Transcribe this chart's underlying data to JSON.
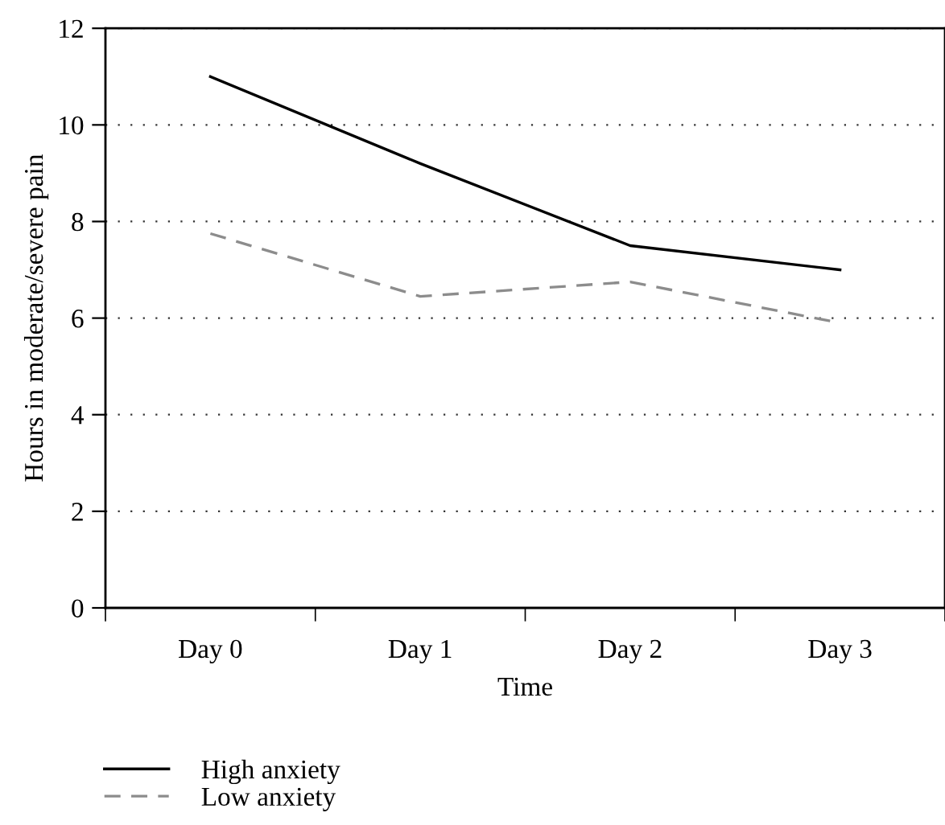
{
  "chart_data": {
    "type": "line",
    "xlabel": "Time",
    "ylabel": "Hours in moderate/severe pain",
    "categories": [
      "Day 0",
      "Day 1",
      "Day 2",
      "Day 3"
    ],
    "series": [
      {
        "name": "High anxiety",
        "color": "#000000",
        "line_style": "solid",
        "values": [
          11,
          9.2,
          7.5,
          7.0
        ]
      },
      {
        "name": "Low anxiety",
        "color": "#8c8c8c",
        "line_style": "dashed",
        "values": [
          7.75,
          6.45,
          6.75,
          5.9
        ]
      }
    ],
    "ylim": [
      0,
      12
    ],
    "yticks": [
      0,
      2,
      4,
      6,
      8,
      10,
      12
    ],
    "grid": "y",
    "legend": "bottom left",
    "marker": "none"
  }
}
